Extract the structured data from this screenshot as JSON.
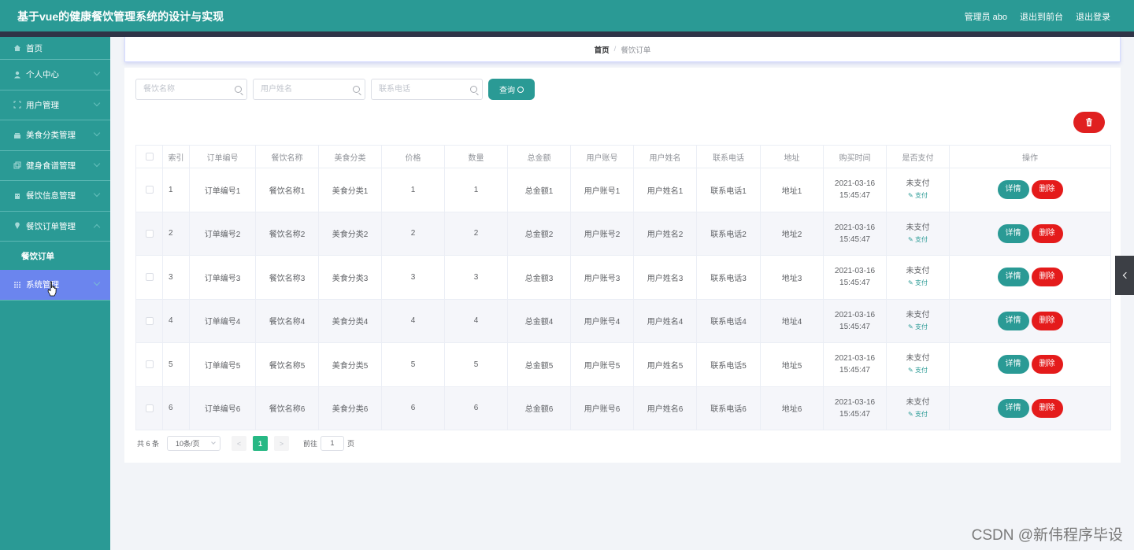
{
  "header": {
    "title": "基于vue的健康餐饮管理系统的设计与实现",
    "user_label": "管理员 abo",
    "back_label": "退出到前台",
    "logout_label": "退出登录"
  },
  "sidebar": {
    "items": [
      {
        "label": "首页",
        "icon": "home-icon"
      },
      {
        "label": "个人中心",
        "icon": "user-icon"
      },
      {
        "label": "用户管理",
        "icon": "frame-icon"
      },
      {
        "label": "美食分类管理",
        "icon": "category-icon"
      },
      {
        "label": "健身食谱管理",
        "icon": "copy-icon"
      },
      {
        "label": "餐饮信息管理",
        "icon": "store-icon"
      },
      {
        "label": "餐饮订单管理",
        "icon": "location-icon"
      },
      {
        "label": "系统管理",
        "icon": "grid-icon"
      }
    ],
    "submenu_label": "餐饮订单"
  },
  "breadcrumb": {
    "home": "首页",
    "separator": "/",
    "current": "餐饮订单"
  },
  "search": {
    "dish_placeholder": "餐饮名称",
    "user_placeholder": "用户姓名",
    "phone_placeholder": "联系电话",
    "query_label": "查询"
  },
  "table": {
    "headers": [
      "索引",
      "订单编号",
      "餐饮名称",
      "美食分类",
      "价格",
      "数量",
      "总金额",
      "用户账号",
      "用户姓名",
      "联系电话",
      "地址",
      "购买时间",
      "是否支付",
      "操作"
    ],
    "rows": [
      {
        "index": "1",
        "order_no": "订单编号1",
        "dish": "餐饮名称1",
        "category": "美食分类1",
        "price": "1",
        "qty": "1",
        "total": "总金额1",
        "account": "用户账号1",
        "name": "用户姓名1",
        "phone": "联系电话1",
        "address": "地址1",
        "time": "2021-03-16 15:45:47",
        "pay_status": "未支付",
        "pay_action": "支付"
      },
      {
        "index": "2",
        "order_no": "订单编号2",
        "dish": "餐饮名称2",
        "category": "美食分类2",
        "price": "2",
        "qty": "2",
        "total": "总金额2",
        "account": "用户账号2",
        "name": "用户姓名2",
        "phone": "联系电话2",
        "address": "地址2",
        "time": "2021-03-16 15:45:47",
        "pay_status": "未支付",
        "pay_action": "支付"
      },
      {
        "index": "3",
        "order_no": "订单编号3",
        "dish": "餐饮名称3",
        "category": "美食分类3",
        "price": "3",
        "qty": "3",
        "total": "总金额3",
        "account": "用户账号3",
        "name": "用户姓名3",
        "phone": "联系电话3",
        "address": "地址3",
        "time": "2021-03-16 15:45:47",
        "pay_status": "未支付",
        "pay_action": "支付"
      },
      {
        "index": "4",
        "order_no": "订单编号4",
        "dish": "餐饮名称4",
        "category": "美食分类4",
        "price": "4",
        "qty": "4",
        "total": "总金额4",
        "account": "用户账号4",
        "name": "用户姓名4",
        "phone": "联系电话4",
        "address": "地址4",
        "time": "2021-03-16 15:45:47",
        "pay_status": "未支付",
        "pay_action": "支付"
      },
      {
        "index": "5",
        "order_no": "订单编号5",
        "dish": "餐饮名称5",
        "category": "美食分类5",
        "price": "5",
        "qty": "5",
        "total": "总金额5",
        "account": "用户账号5",
        "name": "用户姓名5",
        "phone": "联系电话5",
        "address": "地址5",
        "time": "2021-03-16 15:45:47",
        "pay_status": "未支付",
        "pay_action": "支付"
      },
      {
        "index": "6",
        "order_no": "订单编号6",
        "dish": "餐饮名称6",
        "category": "美食分类6",
        "price": "6",
        "qty": "6",
        "total": "总金额6",
        "account": "用户账号6",
        "name": "用户姓名6",
        "phone": "联系电话6",
        "address": "地址6",
        "time": "2021-03-16 15:45:47",
        "pay_status": "未支付",
        "pay_action": "支付"
      }
    ],
    "detail_label": "详情",
    "delete_label": "删除"
  },
  "pagination": {
    "total": "共 6 条",
    "page_size": "10条/页",
    "prev": "<",
    "current_page": "1",
    "next": ">",
    "goto_label": "前往",
    "goto_value": "1",
    "page_suffix": "页"
  },
  "watermark": "CSDN @新伟程序毕设",
  "colors": {
    "primary": "#2a9a95",
    "danger": "#e41b1b",
    "active_menu": "#6b85ee",
    "pager_active": "#27b884"
  }
}
